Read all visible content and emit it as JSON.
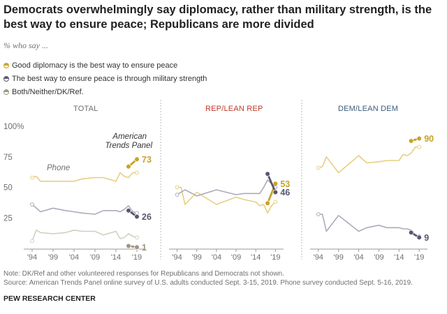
{
  "title": "Democrats overwhelmingly say diplomacy, rather than military strength, is the best way to ensure peace; Republicans are more divided",
  "subtitle": "% who say ...",
  "legend": [
    {
      "label": "Good diplomacy is the best way to ensure peace",
      "series": "diplomacy"
    },
    {
      "label": "The best way to ensure peace is through military strength",
      "series": "military"
    },
    {
      "label": "Both/Neither/DK/Ref.",
      "series": "other"
    }
  ],
  "colors": {
    "diplomacy": "#c9a227",
    "diplomacy_light": "#e6cf82",
    "military": "#5b5670",
    "military_light": "#aeaab9",
    "other": "#9b9681",
    "other_light": "#d2cfbf",
    "rep": "#c0392b",
    "dem": "#3b5b7a",
    "gray_text": "#6f6f6f"
  },
  "annotations": {
    "atp": "American Trends Panel",
    "phone": "Phone"
  },
  "note": "Note: DK/Ref and other volunteered responses for Republicans and Democrats not shown.",
  "source": "Source: American Trends Panel online survey of U.S. adults conducted Sept. 3-15, 2019. Phone survey conducted Sept. 5-16, 2019.",
  "org": "PEW RESEARCH CENTER",
  "chart_data": [
    {
      "type": "line",
      "panel": "TOTAL",
      "title_color": "gray_text",
      "x_ticks": [
        "'94",
        "'99",
        "'04",
        "'09",
        "'14",
        "'19"
      ],
      "x_tick_values": [
        1994,
        1999,
        2004,
        2009,
        2014,
        2019
      ],
      "y_ticks": [
        "100%",
        "75",
        "50",
        "25"
      ],
      "y_tick_values": [
        100,
        75,
        50,
        25
      ],
      "ylim": [
        0,
        100
      ],
      "xlim": [
        1993,
        2020
      ],
      "series": [
        {
          "name": "Diplomacy (phone)",
          "kind": "phone",
          "color": "diplomacy_light",
          "x": [
            1994,
            1995,
            1996,
            1999,
            2002,
            2004,
            2006,
            2009,
            2011,
            2014,
            2015,
            2016,
            2017,
            2018,
            2019
          ],
          "y": [
            58,
            59,
            55,
            55,
            55,
            55,
            57,
            58,
            58,
            55,
            62,
            59,
            58,
            62,
            62
          ]
        },
        {
          "name": "Diplomacy (ATP)",
          "kind": "atp",
          "color": "diplomacy",
          "x": [
            2017,
            2019
          ],
          "y": [
            67,
            73
          ],
          "end_label": "73"
        },
        {
          "name": "Military (phone)",
          "kind": "phone",
          "color": "military_light",
          "x": [
            1994,
            1996,
            1999,
            2002,
            2004,
            2006,
            2009,
            2011,
            2014,
            2015,
            2016,
            2017,
            2018,
            2019
          ],
          "y": [
            36,
            30,
            33,
            31,
            30,
            29,
            28,
            31,
            31,
            30,
            32,
            35,
            30,
            29
          ]
        },
        {
          "name": "Military (ATP)",
          "kind": "atp",
          "color": "military",
          "x": [
            2017,
            2019
          ],
          "y": [
            31,
            26
          ],
          "end_label": "26"
        },
        {
          "name": "Other (phone)",
          "kind": "phone",
          "color": "other_light",
          "x": [
            1994,
            1995,
            1996,
            1999,
            2002,
            2004,
            2006,
            2009,
            2011,
            2014,
            2015,
            2016,
            2017,
            2018,
            2019
          ],
          "y": [
            6,
            15,
            13,
            12,
            13,
            15,
            14,
            14,
            11,
            14,
            8,
            9,
            12,
            10,
            9
          ]
        },
        {
          "name": "Other (ATP)",
          "kind": "atp",
          "color": "other",
          "x": [
            2017,
            2019
          ],
          "y": [
            2,
            1
          ],
          "end_label": "1"
        }
      ]
    },
    {
      "type": "line",
      "panel": "REP/LEAN REP",
      "title_color": "rep",
      "x_ticks": [
        "'94",
        "'99",
        "'04",
        "'09",
        "'14",
        "'19"
      ],
      "x_tick_values": [
        1994,
        1999,
        2004,
        2009,
        2014,
        2019
      ],
      "ylim": [
        0,
        100
      ],
      "xlim": [
        1993,
        2020
      ],
      "series": [
        {
          "name": "Diplomacy (phone)",
          "kind": "phone",
          "color": "diplomacy_light",
          "x": [
            1994,
            1995,
            1996,
            1999,
            2004,
            2009,
            2011,
            2014,
            2015,
            2016,
            2017,
            2018,
            2019
          ],
          "y": [
            50,
            50,
            36,
            46,
            36,
            42,
            40,
            38,
            35,
            36,
            29,
            35,
            38
          ]
        },
        {
          "name": "Diplomacy (ATP)",
          "kind": "atp",
          "color": "diplomacy",
          "x": [
            2017,
            2019
          ],
          "y": [
            37,
            53
          ],
          "end_label": "53"
        },
        {
          "name": "Military (phone)",
          "kind": "phone",
          "color": "military_light",
          "x": [
            1994,
            1996,
            1999,
            2004,
            2009,
            2011,
            2014,
            2015,
            2016,
            2017,
            2018,
            2019
          ],
          "y": [
            44,
            48,
            43,
            48,
            44,
            45,
            45,
            45,
            50,
            56,
            53,
            50
          ]
        },
        {
          "name": "Military (ATP)",
          "kind": "atp",
          "color": "military",
          "x": [
            2017,
            2019
          ],
          "y": [
            61,
            46
          ],
          "end_label": "46"
        }
      ]
    },
    {
      "type": "line",
      "panel": "DEM/LEAN DEM",
      "title_color": "dem",
      "x_ticks": [
        "'94",
        "'99",
        "'04",
        "'09",
        "'14",
        "'19"
      ],
      "x_tick_values": [
        1994,
        1999,
        2004,
        2009,
        2014,
        2019
      ],
      "ylim": [
        0,
        100
      ],
      "xlim": [
        1993,
        2020
      ],
      "series": [
        {
          "name": "Diplomacy (phone)",
          "kind": "phone",
          "color": "diplomacy_light",
          "x": [
            1994,
            1995,
            1996,
            1999,
            2004,
            2006,
            2009,
            2011,
            2014,
            2015,
            2016,
            2017,
            2018,
            2019
          ],
          "y": [
            66,
            67,
            75,
            62,
            76,
            70,
            71,
            72,
            72,
            77,
            76,
            78,
            83,
            83
          ]
        },
        {
          "name": "Diplomacy (ATP)",
          "kind": "atp",
          "color": "diplomacy",
          "x": [
            2017,
            2019
          ],
          "y": [
            88,
            90
          ],
          "end_label": "90"
        },
        {
          "name": "Military (phone)",
          "kind": "phone",
          "color": "military_light",
          "x": [
            1994,
            1995,
            1996,
            1999,
            2004,
            2006,
            2009,
            2011,
            2014,
            2015,
            2016,
            2017,
            2018,
            2019
          ],
          "y": [
            28,
            28,
            14,
            27,
            14,
            17,
            19,
            17,
            17,
            16,
            16,
            15,
            11,
            10
          ]
        },
        {
          "name": "Military (ATP)",
          "kind": "atp",
          "color": "military",
          "x": [
            2017,
            2019
          ],
          "y": [
            13,
            9
          ],
          "end_label": "9"
        }
      ]
    }
  ]
}
